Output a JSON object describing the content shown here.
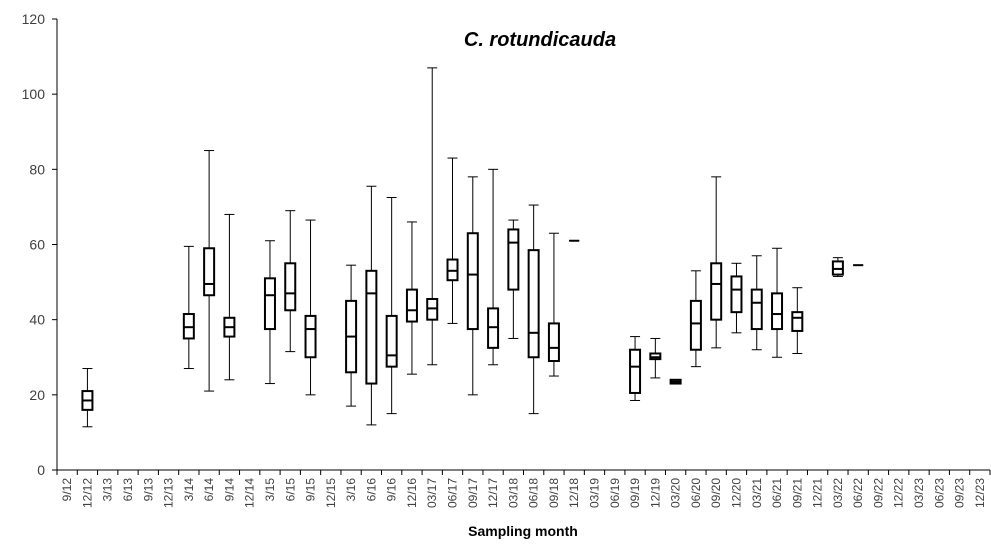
{
  "chart_data": {
    "type": "box",
    "title": "C. rotundicauda",
    "x_label": "Sampling month",
    "categories": [
      "9/12",
      "12/12",
      "3/13",
      "6/13",
      "9/13",
      "12/13",
      "3/14",
      "6/14",
      "9/14",
      "12/14",
      "3/15",
      "6/15",
      "9/15",
      "12/15",
      "3/16",
      "6/16",
      "9/16",
      "12/16",
      "03/17",
      "06/17",
      "09/17",
      "12/17",
      "03/18",
      "06/18",
      "09/18",
      "12/18",
      "03/19",
      "06/19",
      "09/19",
      "12/19",
      "03/20",
      "06/20",
      "09/20",
      "12/20",
      "03/21",
      "06/21",
      "09/21",
      "12/21",
      "03/22",
      "06/22",
      "09/22",
      "12/22",
      "03/23",
      "06/23",
      "09/23",
      "12/23"
    ],
    "min": [
      null,
      11.5,
      null,
      null,
      null,
      null,
      27,
      21,
      24,
      null,
      23,
      31.5,
      20,
      null,
      17,
      12,
      15,
      25.5,
      28,
      39,
      20,
      28,
      35,
      15,
      25,
      61,
      null,
      null,
      18.5,
      24.5,
      23,
      27.5,
      32.5,
      36.5,
      32,
      30,
      31,
      null,
      51.5,
      54.5,
      null,
      null,
      null,
      null,
      null,
      null
    ],
    "q1": [
      null,
      16,
      null,
      null,
      null,
      null,
      35,
      46.5,
      35.5,
      null,
      37.5,
      42.5,
      30,
      null,
      26,
      23,
      27.5,
      39.5,
      40,
      50.5,
      37.5,
      32.5,
      48,
      30,
      29,
      61,
      null,
      null,
      20.5,
      29.5,
      23,
      32,
      40,
      42,
      37.5,
      37.5,
      37,
      null,
      52,
      54.5,
      null,
      null,
      null,
      null,
      null,
      null
    ],
    "median": [
      null,
      18.5,
      null,
      null,
      null,
      null,
      38,
      49.5,
      38,
      null,
      46.5,
      47,
      37.5,
      null,
      35.5,
      47,
      30.5,
      42.5,
      43,
      53,
      52,
      38,
      60.5,
      36.5,
      32.5,
      61,
      null,
      null,
      27.5,
      30,
      23.5,
      39,
      49.5,
      48,
      44.5,
      41.5,
      40.5,
      null,
      53.5,
      54.5,
      null,
      null,
      null,
      null,
      null,
      null
    ],
    "q3": [
      null,
      21,
      null,
      null,
      null,
      null,
      41.5,
      59,
      40.5,
      null,
      51,
      55,
      41,
      null,
      45,
      53,
      41,
      48,
      45.5,
      56,
      63,
      43,
      64,
      58.5,
      39,
      61,
      null,
      null,
      32,
      31,
      24,
      45,
      55,
      51.5,
      48,
      47,
      42,
      null,
      55.5,
      54.5,
      null,
      null,
      null,
      null,
      null,
      null
    ],
    "max": [
      null,
      27,
      null,
      null,
      null,
      null,
      59.5,
      85,
      68,
      null,
      61,
      69,
      66.5,
      null,
      54.5,
      75.5,
      72.5,
      66,
      107,
      83,
      78,
      80,
      66.5,
      70.5,
      63,
      61,
      null,
      null,
      35.5,
      35,
      24,
      53,
      78,
      55,
      57,
      59,
      48.5,
      null,
      56.5,
      54.5,
      null,
      null,
      null,
      null,
      null,
      null
    ],
    "ylim": [
      0,
      120
    ],
    "yticks": [
      0,
      20,
      40,
      60,
      80,
      100,
      120
    ],
    "color": "#000000"
  }
}
